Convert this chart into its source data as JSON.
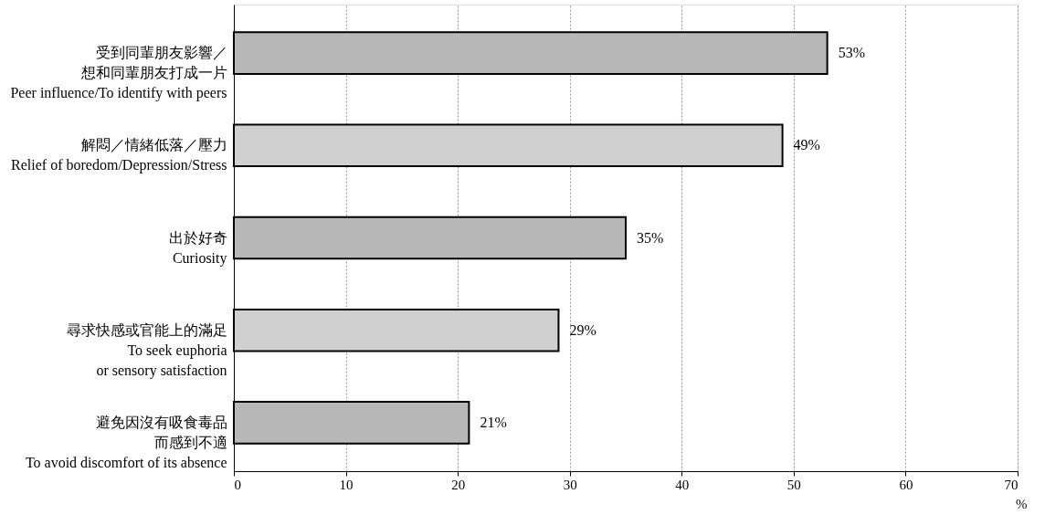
{
  "chart_data": {
    "type": "bar",
    "orientation": "horizontal",
    "categories": [
      "受到同輩朋友影響／想和同輩朋友打成一片\nPeer influence/To identify with peers",
      "解悶／情緒低落／壓力\nRelief of boredom/Depression/Stress",
      "出於好奇\nCuriosity",
      "尋求快感或官能上的滿足\nTo seek euphoria\nor sensory satisfaction",
      "避免因沒有吸食毒品而感到不適\nTo avoid discomfort of its absence"
    ],
    "values": [
      53,
      49,
      35,
      29,
      21
    ],
    "value_labels": [
      "53%",
      "49%",
      "35%",
      "29%",
      "21%"
    ],
    "colors": [
      "#b8b8b8",
      "#d0d0d0",
      "#b8b8b8",
      "#d0d0d0",
      "#b8b8b8"
    ],
    "xlabel": "%",
    "xlim": [
      0,
      70
    ],
    "xticks": [
      0,
      10,
      20,
      30,
      40,
      50,
      60,
      70
    ],
    "grid": "x"
  }
}
